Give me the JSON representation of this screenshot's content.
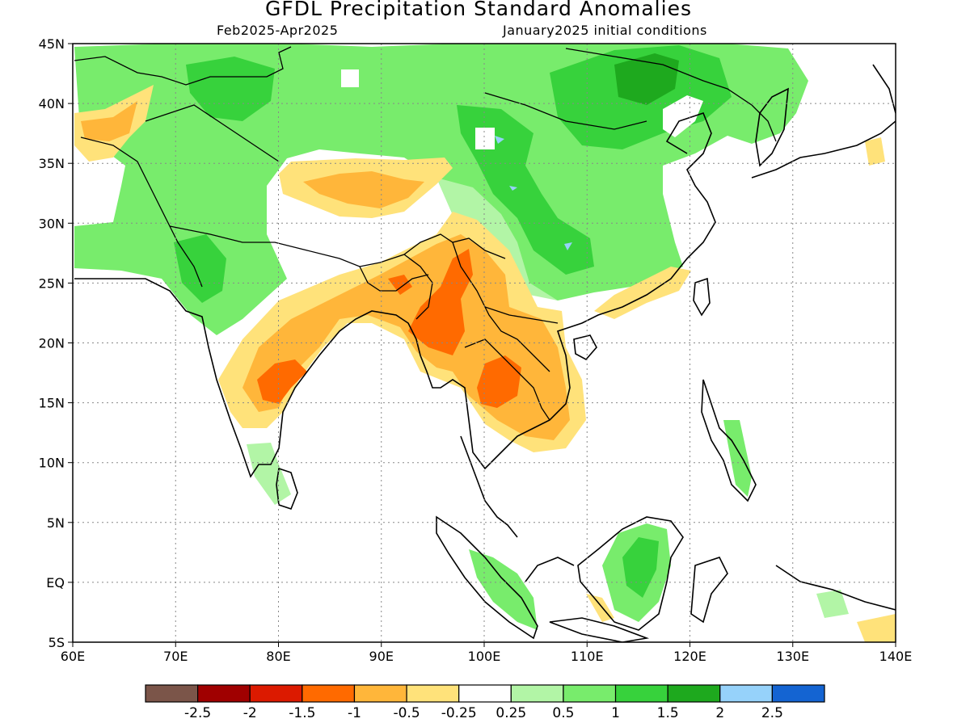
{
  "title": "GFDL Precipitation Standard Anomalies",
  "subtitle_left": "Feb2025-Apr2025",
  "subtitle_right": "January2025 initial conditions",
  "map": {
    "lon_range": [
      60,
      140
    ],
    "lat_range": [
      -5,
      45
    ],
    "lon_ticks": [
      "60E",
      "70E",
      "80E",
      "90E",
      "100E",
      "110E",
      "120E",
      "130E",
      "140E"
    ],
    "lat_ticks": [
      "5S",
      "EQ",
      "5N",
      "10N",
      "15N",
      "20N",
      "25N",
      "30N",
      "35N",
      "40N",
      "45N"
    ],
    "grid": "dotted"
  },
  "legend": {
    "colors": [
      "#7b5549",
      "#a00000",
      "#dc1a00",
      "#ff6a00",
      "#ffb63a",
      "#ffe27a",
      "#ffffff",
      "#b2f5a6",
      "#78ec6c",
      "#37d23c",
      "#1ea91e",
      "#96d2fa",
      "#1464d2"
    ],
    "labels": [
      "-2.5",
      "-2",
      "-1.5",
      "-1",
      "-0.5",
      "-0.25",
      "0.25",
      "0.5",
      "1",
      "1.5",
      "2",
      "2.5"
    ]
  }
}
